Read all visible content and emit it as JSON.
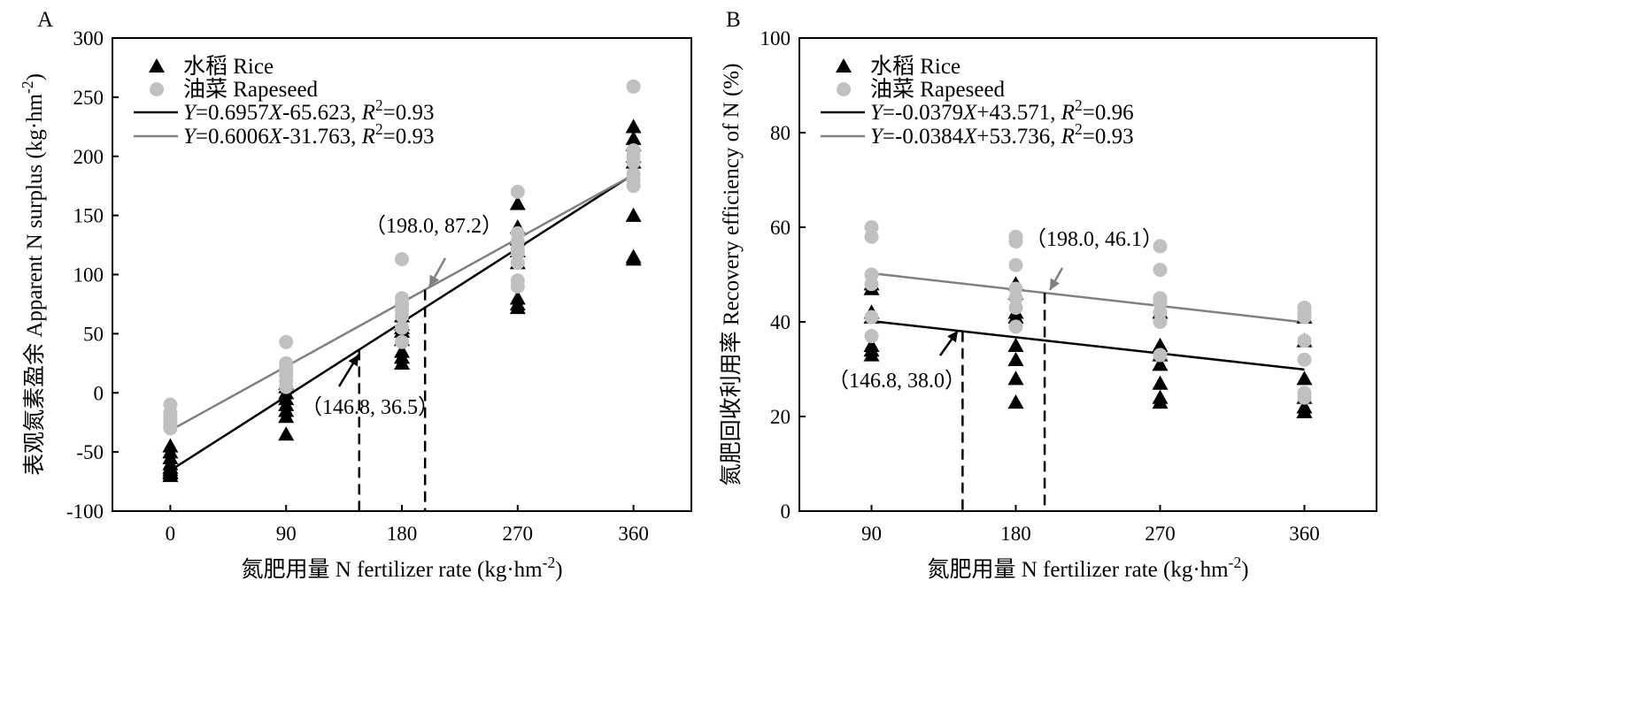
{
  "chart_data": [
    {
      "type": "scatter",
      "panel_label": "A",
      "xlabel": "氮肥用量 N fertilizer rate (kg·hm-2)",
      "ylabel": "表观氮素盈余 Apparent N surplus (kg·hm-2)",
      "xlim": [
        -45,
        405
      ],
      "ylim": [
        -100,
        300
      ],
      "x_ticks": [
        0,
        90,
        180,
        270,
        360
      ],
      "y_ticks": [
        -100,
        -50,
        0,
        50,
        100,
        150,
        200,
        250,
        300
      ],
      "legend_position": "top-left",
      "series": [
        {
          "name": "水稻 Rice",
          "marker": "triangle",
          "color": "#000000",
          "x": [
            0,
            0,
            0,
            0,
            0,
            0,
            0,
            0,
            0,
            90,
            90,
            90,
            90,
            90,
            90,
            90,
            90,
            180,
            180,
            180,
            180,
            180,
            180,
            180,
            180,
            270,
            270,
            270,
            270,
            270,
            270,
            270,
            270,
            360,
            360,
            360,
            360,
            360,
            360,
            360,
            360
          ],
          "y": [
            -45,
            -50,
            -55,
            -60,
            -63,
            -65,
            -67,
            -68,
            -70,
            8,
            5,
            0,
            -5,
            -10,
            -15,
            -20,
            -35,
            65,
            58,
            55,
            52,
            45,
            35,
            30,
            25,
            160,
            140,
            130,
            120,
            110,
            80,
            75,
            72,
            225,
            215,
            210,
            200,
            195,
            150,
            115,
            113
          ]
        },
        {
          "name": "油菜 Rapeseed",
          "marker": "circle",
          "color": "#c0c0c0",
          "x": [
            0,
            0,
            0,
            0,
            0,
            0,
            0,
            90,
            90,
            90,
            90,
            90,
            90,
            90,
            180,
            180,
            180,
            180,
            180,
            180,
            180,
            270,
            270,
            270,
            270,
            270,
            270,
            270,
            270,
            360,
            360,
            360,
            360,
            360,
            360,
            360
          ],
          "y": [
            -10,
            -17,
            -20,
            -23,
            -25,
            -28,
            -30,
            43,
            25,
            22,
            18,
            15,
            10,
            5,
            113,
            80,
            75,
            70,
            65,
            55,
            43,
            170,
            135,
            128,
            122,
            118,
            110,
            95,
            90,
            259,
            205,
            200,
            195,
            185,
            180,
            175
          ]
        }
      ],
      "fit_lines": [
        {
          "label": "Y=0.6957X-65.623, R2=0.93",
          "slope": 0.6957,
          "intercept": -65.623,
          "x_range": [
            0,
            360
          ],
          "color": "#000000"
        },
        {
          "label": "Y=0.6006X-31.763, R2=0.93",
          "slope": 0.6006,
          "intercept": -31.763,
          "x_range": [
            0,
            360
          ],
          "color": "#808080"
        }
      ],
      "vertical_markers": [
        {
          "x": 146.8,
          "y": 36.5,
          "label": "（146.8, 36.5）"
        },
        {
          "x": 198.0,
          "y": 87.2,
          "label": "（198.0, 87.2）"
        }
      ]
    },
    {
      "type": "scatter",
      "panel_label": "B",
      "xlabel": "氮肥用量 N fertilizer rate (kg·hm-2)",
      "ylabel": "氮肥回收利用率 Recovery efficiency of N (%)",
      "xlim": [
        45,
        405
      ],
      "ylim": [
        0,
        100
      ],
      "x_ticks": [
        90,
        180,
        270,
        360
      ],
      "y_ticks": [
        0,
        20,
        40,
        60,
        80,
        100
      ],
      "legend_position": "top-left",
      "series": [
        {
          "name": "水稻 Rice",
          "marker": "triangle",
          "color": "#000000",
          "x": [
            90,
            90,
            90,
            90,
            90,
            90,
            90,
            180,
            180,
            180,
            180,
            180,
            180,
            180,
            180,
            270,
            270,
            270,
            270,
            270,
            270,
            270,
            360,
            360,
            360,
            360,
            360,
            360,
            360
          ],
          "y": [
            48,
            47,
            42,
            41,
            35,
            34,
            33,
            48,
            46,
            42,
            41,
            35,
            32,
            28,
            23,
            42,
            35,
            33,
            31,
            27,
            24,
            23,
            41,
            36,
            28,
            24,
            22,
            21,
            21
          ]
        },
        {
          "name": "油菜 Rapeseed",
          "marker": "circle",
          "color": "#c0c0c0",
          "x": [
            90,
            90,
            90,
            90,
            90,
            90,
            180,
            180,
            180,
            180,
            180,
            180,
            180,
            270,
            270,
            270,
            270,
            270,
            270,
            270,
            360,
            360,
            360,
            360,
            360,
            360,
            360
          ],
          "y": [
            60,
            58,
            50,
            48,
            41,
            37,
            58,
            57,
            52,
            47,
            45,
            43,
            39,
            56,
            51,
            45,
            44,
            42,
            40,
            33,
            43,
            42,
            41,
            36,
            32,
            25,
            24
          ]
        }
      ],
      "fit_lines": [
        {
          "label": "Y=-0.0379X+43.571, R2=0.96",
          "slope": -0.0379,
          "intercept": 43.571,
          "x_range": [
            90,
            360
          ],
          "color": "#000000"
        },
        {
          "label": "Y=-0.0384X+53.736, R2=0.93",
          "slope": -0.0384,
          "intercept": 53.736,
          "x_range": [
            90,
            360
          ],
          "color": "#808080"
        }
      ],
      "vertical_markers": [
        {
          "x": 146.8,
          "y": 38.0,
          "label": "（146.8, 38.0）"
        },
        {
          "x": 198.0,
          "y": 46.1,
          "label": "（198.0, 46.1）"
        }
      ]
    }
  ]
}
